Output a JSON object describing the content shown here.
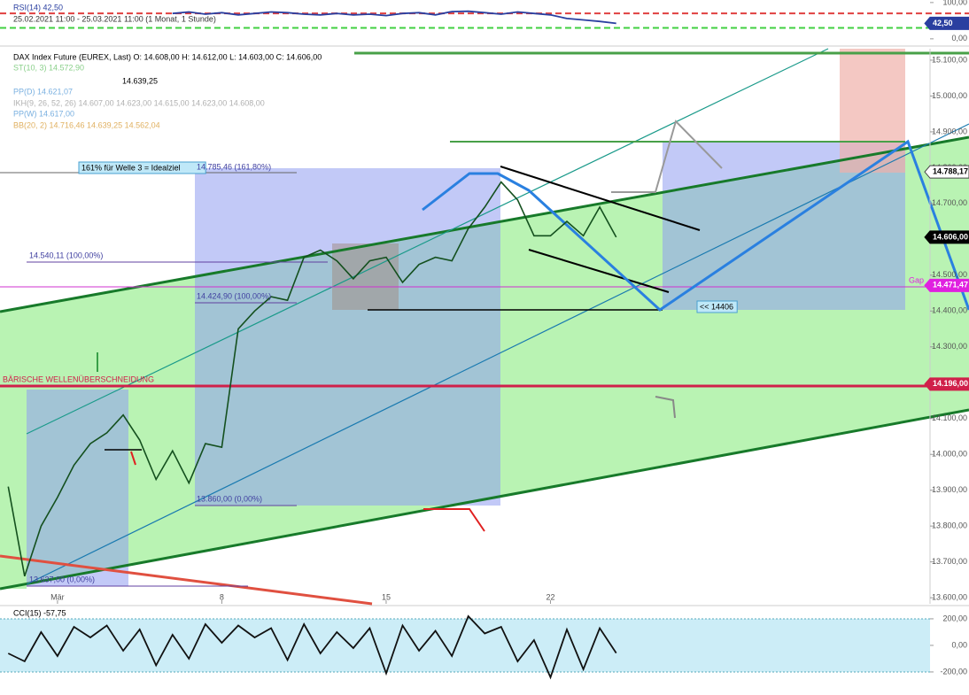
{
  "chart_data": [
    {
      "type": "line",
      "panel": "rsi",
      "header": [
        "RSI(14) 42,50",
        "25.02.2021 11:00 - 25.03.2021 11:00 (1 Monat, 1 Stunde)"
      ],
      "xlim": [
        -1.75,
        26.55
      ],
      "ylim": [
        -15,
        107
      ],
      "yticks": [
        {
          "value": 100,
          "label": "100,00"
        },
        {
          "value": 0,
          "label": "0,00"
        }
      ],
      "levels": [
        {
          "value": 70,
          "color": "#e04040"
        },
        {
          "value": 30,
          "color": "#40d040"
        }
      ],
      "tags": [
        {
          "value": 42.5,
          "label": "42,50",
          "color": "#2a3fa0"
        }
      ],
      "series": [
        {
          "name": "RSI(14)",
          "color": "#2a3fa0",
          "x": [
            3.5,
            4,
            4.5,
            5,
            5.5,
            6,
            6.5,
            7,
            7.5,
            8,
            8.5,
            9,
            9.5,
            10,
            10.5,
            11,
            11.5,
            12,
            12.5,
            13,
            13.5,
            14,
            14.5,
            15,
            15.5,
            16,
            16.5,
            17
          ],
          "values": [
            70,
            74,
            68,
            72,
            66,
            70,
            74,
            72,
            68,
            66,
            70,
            66,
            68,
            64,
            70,
            72,
            66,
            75,
            76,
            72,
            68,
            74,
            70,
            66,
            56,
            52,
            48,
            42.5
          ]
        }
      ]
    },
    {
      "type": "line",
      "panel": "price",
      "header": [
        "DAX Index Future (EUREX, Last) O: 14.608,00 H: 14.612,00 L: 14.603,00 C: 14.606,00",
        "14.639,25",
        "ST(10, 3) 14.572,90",
        "PP(D) 14.621,07",
        "IKH(9, 26, 52, 26) 14.607,00 14.623,00 14.615,00 14.623,00 14.608,00",
        "PP(W) 14.617,00",
        "BB(20, 2) 14.716,46 14.639,25 14.562,04"
      ],
      "annotations": [
        "161% für Welle 3 = Idealziel",
        "14.785,46 (161,80%)",
        "14.540,11 (100,00%)",
        "14.424,90 (100,00%)",
        "13.860,00 (0,00%)",
        "13.637,00 (0,00%)",
        "BÄRISCHE WELLENÜBERSCHNEIDUNG",
        "<< 14406",
        "Gap"
      ],
      "xlim": [
        -1.75,
        26.55
      ],
      "ylim": [
        13583,
        15132
      ],
      "xticks": [
        {
          "value": 0,
          "label": "Mär"
        },
        {
          "value": 5,
          "label": "8"
        },
        {
          "value": 10,
          "label": "15"
        },
        {
          "value": 15,
          "label": "22"
        }
      ],
      "yticks": [
        {
          "value": 15100,
          "label": "15.100,00"
        },
        {
          "value": 15000,
          "label": "15.000,00"
        },
        {
          "value": 14900,
          "label": "14.900,00"
        },
        {
          "value": 14800,
          "label": "14.800,00"
        },
        {
          "value": 14700,
          "label": "14.700,00"
        },
        {
          "value": 14600,
          "label": "14.600,00"
        },
        {
          "value": 14500,
          "label": "14.500,00"
        },
        {
          "value": 14400,
          "label": "14.400,00"
        },
        {
          "value": 14300,
          "label": "14.300,00"
        },
        {
          "value": 14200,
          "label": "14.200,00"
        },
        {
          "value": 14100,
          "label": "14.100,00"
        },
        {
          "value": 14000,
          "label": "14.000,00"
        },
        {
          "value": 13900,
          "label": "13.900,00"
        },
        {
          "value": 13800,
          "label": "13.800,00"
        },
        {
          "value": 13700,
          "label": "13.700,00"
        },
        {
          "value": 13600,
          "label": "13.600,00"
        }
      ],
      "tags": [
        {
          "value": 14788.17,
          "label": "14.788,17",
          "color": "#ffffff"
        },
        {
          "value": 14606,
          "label": "14.606,00",
          "color": "#000000"
        },
        {
          "value": 14471.47,
          "label": "14.471,47",
          "color": "#e020e0"
        },
        {
          "value": 14196,
          "label": "14.196,00",
          "color": "#d0204a"
        }
      ],
      "series": [
        {
          "name": "DAX Index Future",
          "color": "#14501e",
          "x": [
            -1.5,
            -1,
            -0.5,
            0,
            0.5,
            1,
            1.5,
            2,
            2.5,
            3,
            3.5,
            4,
            4.5,
            5,
            5.5,
            6,
            6.5,
            7,
            7.5,
            8,
            8.5,
            9,
            9.5,
            10,
            10.5,
            11,
            11.5,
            12,
            12.5,
            13,
            13.5,
            14,
            14.5,
            15,
            15.5,
            16,
            16.5,
            17
          ],
          "values": [
            13910,
            13660,
            13800,
            13880,
            13970,
            14030,
            14060,
            14110,
            14040,
            13930,
            14010,
            13920,
            14030,
            14020,
            14350,
            14400,
            14440,
            14430,
            14550,
            14570,
            14540,
            14490,
            14540,
            14550,
            14480,
            14530,
            14550,
            14540,
            14630,
            14690,
            14760,
            14710,
            14610,
            14610,
            14650,
            14610,
            14690,
            14606
          ]
        }
      ]
    },
    {
      "type": "line",
      "panel": "cci",
      "header": [
        "CCI(15) -57,75"
      ],
      "xlim": [
        -1.75,
        26.55
      ],
      "ylim": [
        -307,
        273
      ],
      "yticks": [
        {
          "value": 200,
          "label": "200,00"
        },
        {
          "value": 0,
          "label": "0,00"
        },
        {
          "value": -200,
          "label": "-200,00"
        }
      ],
      "band": [
        -200,
        200
      ],
      "series": [
        {
          "name": "CCI(15)",
          "color": "#111111",
          "x": [
            -1.5,
            -1,
            -0.5,
            0,
            0.5,
            1,
            1.5,
            2,
            2.5,
            3,
            3.5,
            4,
            4.5,
            5,
            5.5,
            6,
            6.5,
            7,
            7.5,
            8,
            8.5,
            9,
            9.5,
            10,
            10.5,
            11,
            11.5,
            12,
            12.5,
            13,
            13.5,
            14,
            14.5,
            15,
            15.5,
            16,
            16.5,
            17
          ],
          "values": [
            -60,
            -120,
            100,
            -80,
            140,
            60,
            150,
            -40,
            120,
            -150,
            80,
            -100,
            160,
            20,
            150,
            60,
            130,
            -110,
            160,
            -60,
            100,
            -20,
            130,
            -210,
            150,
            -40,
            110,
            -80,
            220,
            90,
            140,
            -120,
            40,
            -240,
            120,
            -180,
            130,
            -57.75
          ]
        }
      ]
    }
  ]
}
